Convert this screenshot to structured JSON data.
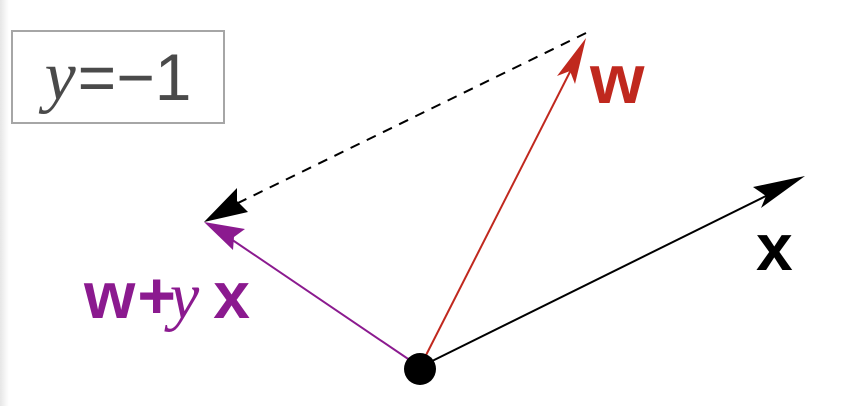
{
  "label_box": {
    "variable": "y",
    "operator": "=",
    "value": "−1"
  },
  "vectors": {
    "w": {
      "label": "w",
      "color": "#c0281e"
    },
    "x": {
      "label": "x",
      "color": "#000000"
    },
    "sum": {
      "label_w": "w",
      "label_plus": "+",
      "label_y": "y",
      "label_x": "x",
      "color": "#8b1a8f"
    }
  },
  "colors": {
    "dashed_arrow": "#000000",
    "origin_dot": "#000000",
    "box_border": "#a6a6a6",
    "box_text": "#4a4a4a"
  }
}
